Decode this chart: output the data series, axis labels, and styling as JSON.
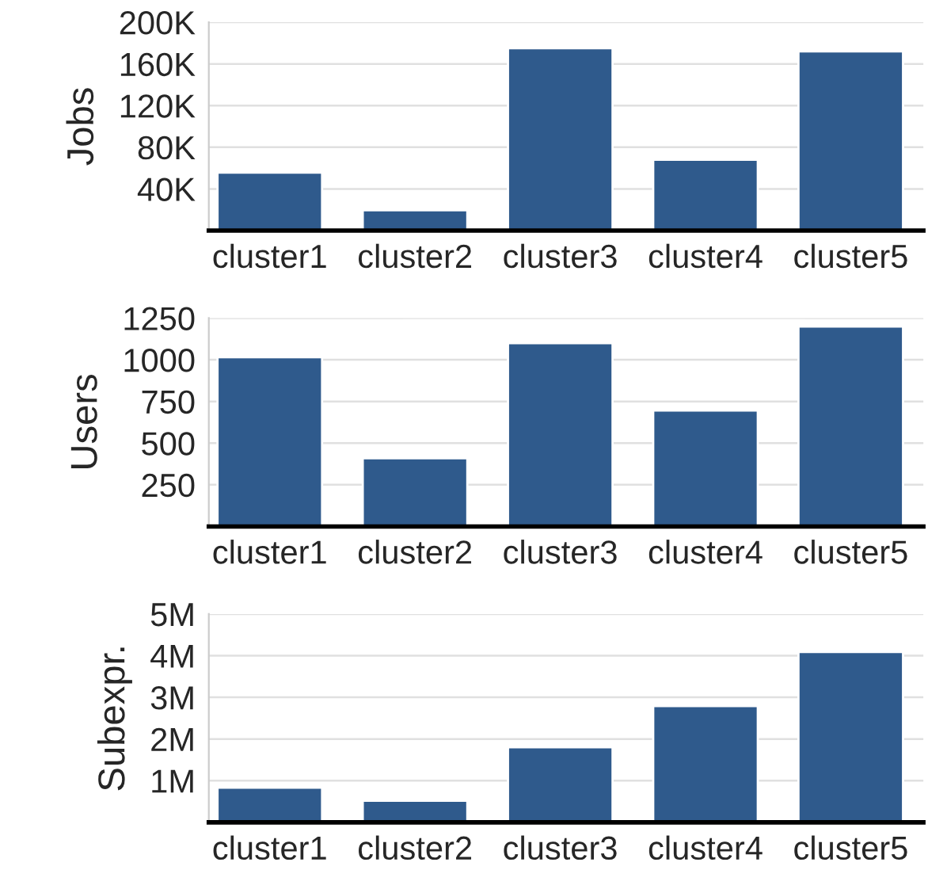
{
  "chart_data": [
    {
      "type": "bar",
      "ylabel": "Jobs",
      "categories": [
        "cluster1",
        "cluster2",
        "cluster3",
        "cluster4",
        "cluster5"
      ],
      "values": [
        55600,
        19600,
        175000,
        68000,
        172000
      ],
      "color": "#2f5a8c",
      "ylim": [
        0,
        200000
      ],
      "yticks": [
        {
          "value": 40000,
          "label": "40K"
        },
        {
          "value": 80000,
          "label": "80K"
        },
        {
          "value": 120000,
          "label": "120K"
        },
        {
          "value": 160000,
          "label": "160K"
        },
        {
          "value": 200000,
          "label": "200K"
        }
      ],
      "grid": "y"
    },
    {
      "type": "bar",
      "ylabel": "Users",
      "categories": [
        "cluster1",
        "cluster2",
        "cluster3",
        "cluster4",
        "cluster5"
      ],
      "values": [
        1015,
        409,
        1100,
        695,
        1199
      ],
      "color": "#2f5a8c",
      "ylim": [
        0,
        1250
      ],
      "yticks": [
        250,
        500,
        750,
        1000,
        1250
      ],
      "grid": "y"
    },
    {
      "type": "bar",
      "ylabel": "Subexpr.",
      "categories": [
        "cluster1",
        "cluster2",
        "cluster3",
        "cluster4",
        "cluster5"
      ],
      "values": [
        830000,
        520000,
        1800000,
        2790000,
        4090000
      ],
      "color": "#2f5a8c",
      "ylim": [
        0,
        5000000
      ],
      "yticks": [
        {
          "value": 1000000,
          "label": "1M"
        },
        {
          "value": 2000000,
          "label": "2M"
        },
        {
          "value": 3000000,
          "label": "3M"
        },
        {
          "value": 4000000,
          "label": "4M"
        },
        {
          "value": 5000000,
          "label": "5M"
        }
      ],
      "grid": "y"
    }
  ]
}
